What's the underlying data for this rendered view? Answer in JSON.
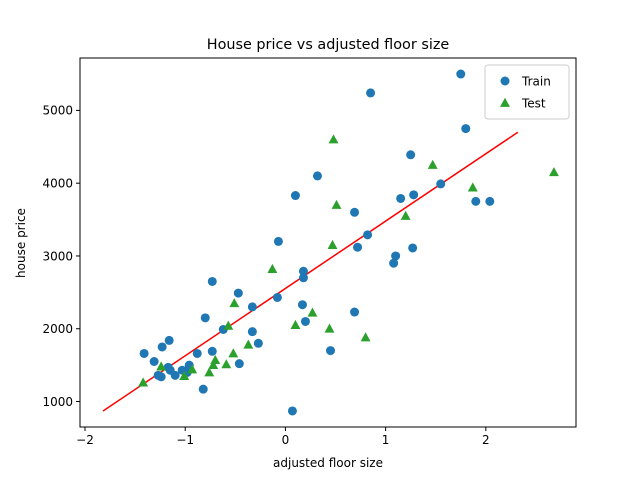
{
  "chart_data": {
    "type": "scatter",
    "title": "House price vs adjusted floor size",
    "xlabel": "adjusted floor size",
    "ylabel": "house price",
    "xlim": [
      -2.05,
      2.9
    ],
    "ylim": [
      650,
      5720
    ],
    "x_ticks": [
      -2,
      -1,
      0,
      1,
      2
    ],
    "x_tick_labels": [
      "−2",
      "−1",
      "0",
      "1",
      "2"
    ],
    "y_ticks": [
      1000,
      2000,
      3000,
      4000,
      5000
    ],
    "y_tick_labels": [
      "1000",
      "2000",
      "3000",
      "4000",
      "5000"
    ],
    "grid": false,
    "legend_position": "top-right",
    "series": [
      {
        "name": "Train",
        "marker": "circle",
        "color": "#1f77b4",
        "points": [
          [
            1.75,
            5500
          ],
          [
            0.85,
            5240
          ],
          [
            1.8,
            4750
          ],
          [
            1.25,
            4390
          ],
          [
            0.32,
            4100
          ],
          [
            1.55,
            3990
          ],
          [
            1.28,
            3840
          ],
          [
            0.1,
            3830
          ],
          [
            1.15,
            3790
          ],
          [
            1.9,
            3750
          ],
          [
            2.04,
            3750
          ],
          [
            0.69,
            3600
          ],
          [
            0.82,
            3290
          ],
          [
            -0.07,
            3200
          ],
          [
            0.72,
            3120
          ],
          [
            1.27,
            3110
          ],
          [
            1.1,
            3000
          ],
          [
            1.08,
            2900
          ],
          [
            0.18,
            2790
          ],
          [
            0.18,
            2700
          ],
          [
            -0.73,
            2650
          ],
          [
            -0.47,
            2490
          ],
          [
            -0.08,
            2430
          ],
          [
            0.17,
            2330
          ],
          [
            -0.33,
            2300
          ],
          [
            0.69,
            2230
          ],
          [
            -0.8,
            2150
          ],
          [
            0.2,
            2100
          ],
          [
            -0.62,
            1990
          ],
          [
            -0.33,
            1960
          ],
          [
            -1.16,
            1840
          ],
          [
            -0.27,
            1800
          ],
          [
            -1.23,
            1750
          ],
          [
            0.45,
            1700
          ],
          [
            -0.73,
            1690
          ],
          [
            -0.88,
            1660
          ],
          [
            -1.41,
            1660
          ],
          [
            -1.31,
            1550
          ],
          [
            -0.46,
            1520
          ],
          [
            -0.96,
            1500
          ],
          [
            -1.17,
            1470
          ],
          [
            -0.96,
            1440
          ],
          [
            -1.15,
            1430
          ],
          [
            -1.03,
            1430
          ],
          [
            -0.98,
            1400
          ],
          [
            -1.27,
            1360
          ],
          [
            -1.24,
            1340
          ],
          [
            -1.1,
            1360
          ],
          [
            -0.82,
            1170
          ],
          [
            0.07,
            870
          ]
        ]
      },
      {
        "name": "Test",
        "marker": "triangle",
        "color": "#2ca02c",
        "points": [
          [
            0.48,
            4600
          ],
          [
            1.47,
            4250
          ],
          [
            2.68,
            4150
          ],
          [
            1.87,
            3940
          ],
          [
            0.51,
            3700
          ],
          [
            1.2,
            3550
          ],
          [
            0.47,
            3150
          ],
          [
            -0.13,
            2820
          ],
          [
            -0.51,
            2350
          ],
          [
            0.27,
            2220
          ],
          [
            0.1,
            2050
          ],
          [
            -0.57,
            2040
          ],
          [
            0.44,
            2000
          ],
          [
            0.8,
            1880
          ],
          [
            -0.37,
            1780
          ],
          [
            -0.52,
            1660
          ],
          [
            -0.7,
            1570
          ],
          [
            -0.59,
            1510
          ],
          [
            -0.72,
            1500
          ],
          [
            -1.24,
            1480
          ],
          [
            -0.93,
            1440
          ],
          [
            -0.76,
            1400
          ],
          [
            -1.01,
            1350
          ],
          [
            -1.42,
            1260
          ]
        ]
      },
      {
        "name": "",
        "marker": "line",
        "color": "#ff0000",
        "points": [
          [
            -1.82,
            870
          ],
          [
            2.32,
            4700
          ]
        ]
      }
    ]
  }
}
